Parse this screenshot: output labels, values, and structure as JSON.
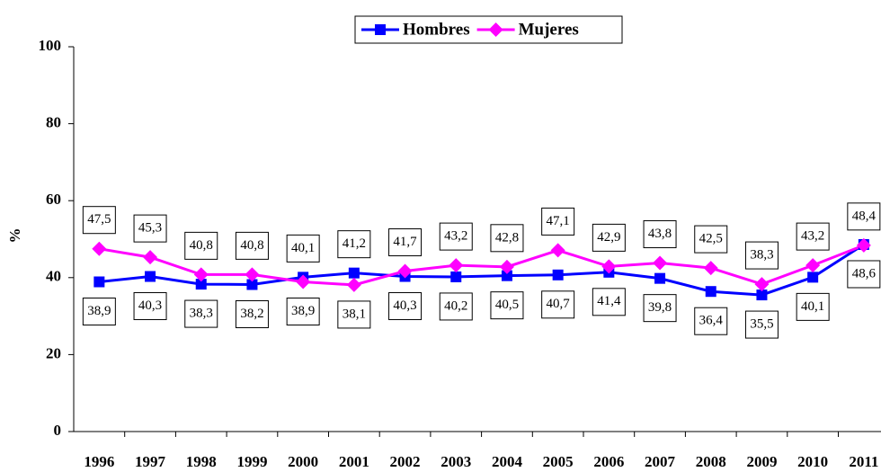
{
  "chart_data": {
    "type": "line",
    "y_label": "%",
    "categories": [
      "1996",
      "1997",
      "1998",
      "1999",
      "2000",
      "2001",
      "2002",
      "2003",
      "2004",
      "2005",
      "2006",
      "2007",
      "2008",
      "2009",
      "2010",
      "2011"
    ],
    "series": [
      {
        "name": "Hombres",
        "color": "#0000ff",
        "marker": "square",
        "values": [
          38.9,
          40.3,
          38.3,
          38.2,
          40.1,
          41.2,
          40.3,
          40.2,
          40.5,
          40.7,
          41.4,
          39.8,
          36.4,
          35.5,
          40.1,
          48.6
        ],
        "value_labels": [
          "38,9",
          "40,3",
          "38,3",
          "38,2",
          "40,1",
          "41,2",
          "40,3",
          "40,2",
          "40,5",
          "40,7",
          "41,4",
          "39,8",
          "36,4",
          "35,5",
          "40,1",
          "48,6"
        ]
      },
      {
        "name": "Mujeres",
        "color": "#ff00ff",
        "marker": "diamond",
        "values": [
          47.5,
          45.3,
          40.8,
          40.8,
          38.9,
          38.1,
          41.7,
          43.2,
          42.8,
          47.1,
          42.9,
          43.8,
          42.5,
          38.3,
          43.2,
          48.4
        ],
        "value_labels": [
          "47,5",
          "45,3",
          "40,8",
          "40,8",
          "38,9",
          "38,1",
          "41,7",
          "43,2",
          "42,8",
          "47,1",
          "42,9",
          "43,8",
          "42,5",
          "38,3",
          "43,2",
          "48,4"
        ]
      }
    ],
    "ylim": [
      0,
      100
    ],
    "yticks": [
      0,
      20,
      40,
      60,
      80,
      100
    ],
    "legend": "top"
  }
}
